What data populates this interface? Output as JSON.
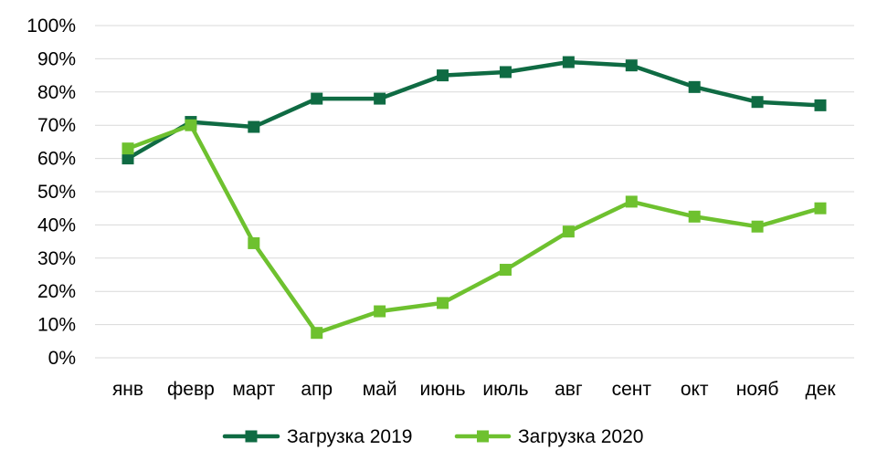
{
  "chart_data": {
    "type": "line",
    "title": "",
    "xlabel": "",
    "ylabel": "",
    "categories": [
      "янв",
      "февр",
      "март",
      "апр",
      "май",
      "июнь",
      "июль",
      "авг",
      "сент",
      "окт",
      "нояб",
      "дек"
    ],
    "ylim": [
      0,
      100
    ],
    "y_ticks": [
      "0%",
      "10%",
      "20%",
      "30%",
      "40%",
      "50%",
      "60%",
      "70%",
      "80%",
      "90%",
      "100%"
    ],
    "grid": "horizontal",
    "legend_position": "bottom",
    "series": [
      {
        "name": "Загрузка 2019",
        "color": "#0f6b43",
        "marker": "square",
        "values": [
          60,
          71,
          69.5,
          78,
          78,
          85,
          86,
          89,
          88,
          81.5,
          77,
          76
        ]
      },
      {
        "name": "Загрузка 2020",
        "color": "#6ec12f",
        "marker": "square",
        "values": [
          63,
          70,
          34.5,
          7.5,
          14,
          16.5,
          26.5,
          38,
          47,
          42.5,
          39.5,
          45
        ]
      }
    ]
  }
}
